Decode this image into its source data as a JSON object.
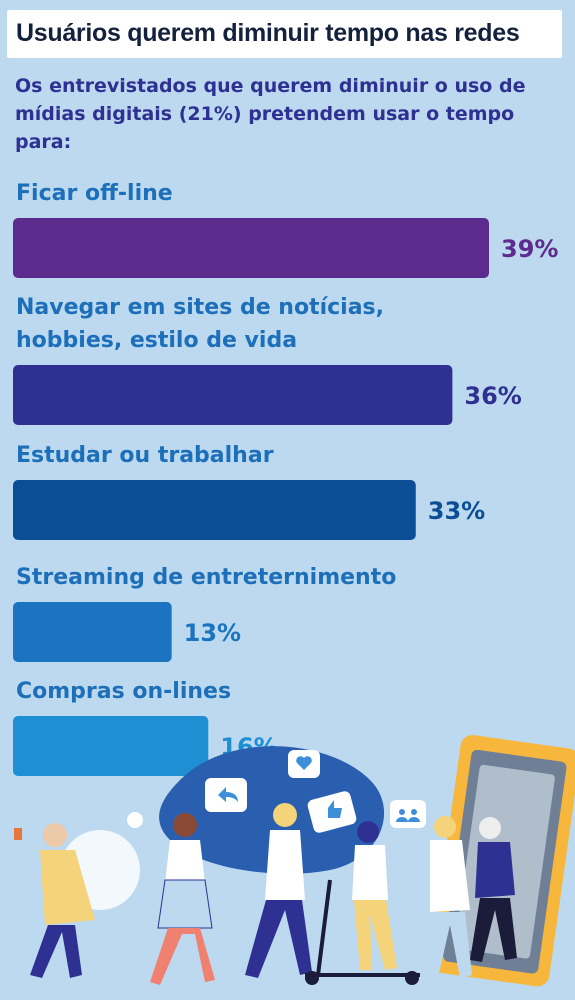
{
  "header": {
    "title": "Usuários querem diminuir tempo nas redes",
    "subtitle": "Os entrevistados que querem diminuir o uso de mídias digitais (21%) pretendem usar o tempo para:"
  },
  "chart_data": {
    "type": "bar",
    "orientation": "horizontal",
    "title": "Usuários querem diminuir tempo nas redes",
    "subtitle": "Os entrevistados que querem diminuir o uso de mídias digitais (21%) pretendem usar o tempo para:",
    "categories": [
      [
        "Ficar off-line"
      ],
      [
        "Navegar em sites de notícias,",
        "hobbies, estilo de vida"
      ],
      [
        "Estudar ou trabalhar"
      ],
      [
        "Streaming de entreternimento"
      ],
      [
        "Compras on-lines"
      ]
    ],
    "values": [
      39,
      36,
      33,
      13,
      16
    ],
    "value_labels": [
      "39%",
      "36%",
      "33%",
      "13%",
      "16%"
    ],
    "unit": "%",
    "colors": [
      "#5d2a8e",
      "#2e3192",
      "#0c4e96",
      "#1a74bf",
      "#1f8fd4"
    ],
    "value_label_colors": [
      "#5d2a8e",
      "#2e3192",
      "#0c4e96",
      "#1a74bf",
      "#1f8fd4"
    ],
    "grid": false,
    "legend": "none"
  },
  "theme": {
    "background": "#bcd9ef",
    "title_color": "#14213d",
    "subtitle_color": "#2e3192",
    "label_color": "#1c6fb8"
  }
}
